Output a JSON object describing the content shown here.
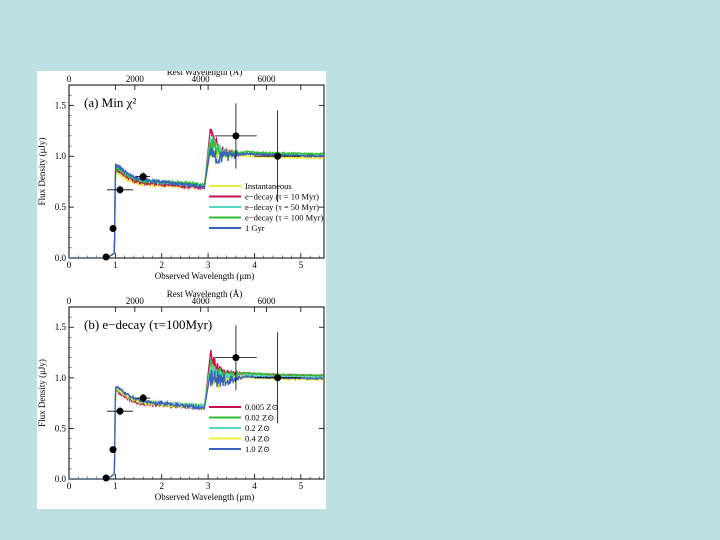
{
  "chart_data": [
    {
      "type": "line",
      "panel_label": "(a)  Min χ²",
      "xlabel": "Observed Wavelength (μm)",
      "x2label": "Rest Wavelength (Å)",
      "ylabel": "Flux Density (μJy)",
      "xlim": [
        0,
        5.5
      ],
      "ylim": [
        0,
        1.7
      ],
      "x_ticks": [
        "0",
        "1",
        "2",
        "3",
        "4",
        "5"
      ],
      "x2_ticks": [
        "0",
        "2000",
        "4000",
        "6000"
      ],
      "y_ticks": [
        "0.0",
        "0.5",
        "1.0",
        "1.5"
      ],
      "legend": {
        "position": "lower-right"
      },
      "series": [
        {
          "name": "Instantaneous",
          "color": "#ecec3a",
          "break": 2.92,
          "pre": 0.7,
          "post": 0.98,
          "bump": 0.04,
          "noise": 0.05,
          "rise": 0.85,
          "onset": 0.98
        },
        {
          "name": "e−decay (τ = 10 Myr)",
          "color": "#c8104e",
          "break": 2.92,
          "pre": 0.69,
          "post": 1.0,
          "bump": 0.28,
          "noise": 0.07,
          "rise": 0.88,
          "onset": 0.98
        },
        {
          "name": "e−decay (τ = 50 Myr)",
          "color": "#58d8c0",
          "break": 2.92,
          "pre": 0.71,
          "post": 1.01,
          "bump": 0.18,
          "noise": 0.09,
          "rise": 0.9,
          "onset": 0.98
        },
        {
          "name": "e−decay (τ = 100 Myr)",
          "color": "#30c030",
          "break": 2.92,
          "pre": 0.72,
          "post": 1.02,
          "bump": 0.12,
          "noise": 0.1,
          "rise": 0.9,
          "onset": 0.98
        },
        {
          "name": "1 Gyr",
          "color": "#3860c0",
          "break": 2.92,
          "pre": 0.7,
          "post": 1.0,
          "bump": 0.08,
          "noise": 0.13,
          "rise": 0.92,
          "onset": 0.98
        }
      ],
      "observed": [
        {
          "x": 0.8,
          "y": 0.01,
          "xerr": 0.0,
          "yerr": 0.0
        },
        {
          "x": 0.95,
          "y": 0.29,
          "xerr": 0.06,
          "yerr": 0.02
        },
        {
          "x": 1.1,
          "y": 0.67,
          "xerr": 0.28,
          "yerr": 0.04
        },
        {
          "x": 1.6,
          "y": 0.8,
          "xerr": 0.15,
          "yerr": 0.04
        },
        {
          "x": 3.6,
          "y": 1.2,
          "xerr": 0.45,
          "yerr": 0.32
        },
        {
          "x": 4.5,
          "y": 1.0,
          "xerr": 0.5,
          "yerr": 0.45
        }
      ]
    },
    {
      "type": "line",
      "panel_label": "(b)  e−decay (τ=100Myr)",
      "xlabel": "Observed Wavelength (μm)",
      "x2label": "Rest Wavelength (Å)",
      "ylabel": "Flux Density (μJy)",
      "xlim": [
        0,
        5.5
      ],
      "ylim": [
        0,
        1.7
      ],
      "x_ticks": [
        "0",
        "1",
        "2",
        "3",
        "4",
        "5"
      ],
      "x2_ticks": [
        "0",
        "2000",
        "4000",
        "6000"
      ],
      "y_ticks": [
        "0.0",
        "0.5",
        "1.0",
        "1.5"
      ],
      "legend": {
        "position": "lower-right"
      },
      "series": [
        {
          "name": "0.005 Z⊙",
          "color": "#c8104e",
          "break": 2.92,
          "pre": 0.7,
          "post": 1.02,
          "bump": 0.22,
          "noise": 0.07,
          "rise": 0.88,
          "onset": 0.98
        },
        {
          "name": "0.02 Z⊙",
          "color": "#30c030",
          "break": 2.92,
          "pre": 0.72,
          "post": 1.02,
          "bump": 0.12,
          "noise": 0.1,
          "rise": 0.9,
          "onset": 0.98
        },
        {
          "name": "0.2 Z⊙",
          "color": "#58d8c0",
          "break": 2.92,
          "pre": 0.71,
          "post": 1.0,
          "bump": 0.1,
          "noise": 0.12,
          "rise": 0.9,
          "onset": 0.98
        },
        {
          "name": "0.4 Z⊙",
          "color": "#ecec3a",
          "break": 2.92,
          "pre": 0.7,
          "post": 0.98,
          "bump": 0.06,
          "noise": 0.12,
          "rise": 0.9,
          "onset": 0.98
        },
        {
          "name": "1.0 Z⊙",
          "color": "#3860c0",
          "break": 2.92,
          "pre": 0.7,
          "post": 0.99,
          "bump": 0.06,
          "noise": 0.15,
          "rise": 0.92,
          "onset": 0.98
        }
      ],
      "observed": [
        {
          "x": 0.8,
          "y": 0.01,
          "xerr": 0.0,
          "yerr": 0.0
        },
        {
          "x": 0.95,
          "y": 0.29,
          "xerr": 0.06,
          "yerr": 0.02
        },
        {
          "x": 1.1,
          "y": 0.67,
          "xerr": 0.28,
          "yerr": 0.04
        },
        {
          "x": 1.6,
          "y": 0.8,
          "xerr": 0.15,
          "yerr": 0.04
        },
        {
          "x": 3.6,
          "y": 1.2,
          "xerr": 0.45,
          "yerr": 0.32
        },
        {
          "x": 4.5,
          "y": 1.0,
          "xerr": 0.5,
          "yerr": 0.45
        }
      ]
    }
  ]
}
